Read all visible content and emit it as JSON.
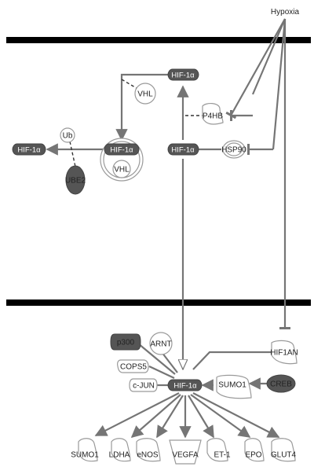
{
  "stimulus": {
    "label": "Hypoxia"
  },
  "cytoplasm": {
    "hif_top": "HIF-1α",
    "vhl_free": "VHL",
    "p4hb": "P4HB",
    "hsp90": "HSP90",
    "hif_middle": "HIF-1α",
    "complex_hif": "HIF-1α",
    "complex_vhl": "VHL",
    "ub": "Ub",
    "ube2": "UBE2",
    "hif_degraded": "HIF-1α"
  },
  "nucleus": {
    "p300": "p300",
    "arnt": "ARNT",
    "cops5": "COPS5",
    "cjun": "c-JUN",
    "hif_nuclear": "HIF-1α",
    "hif1an": "HIF1AN",
    "sumo1_regulator": "SUMO1",
    "creb": "CREB",
    "targets": [
      "SUMO1",
      "LDHA",
      "eNOS",
      "VEGFA",
      "ET-1",
      "EPO",
      "GLUT4"
    ]
  },
  "colors": {
    "edge": "#757575",
    "membrane": "#000000",
    "node_filled": "#555555",
    "node_outline": "#9a9a9a"
  }
}
